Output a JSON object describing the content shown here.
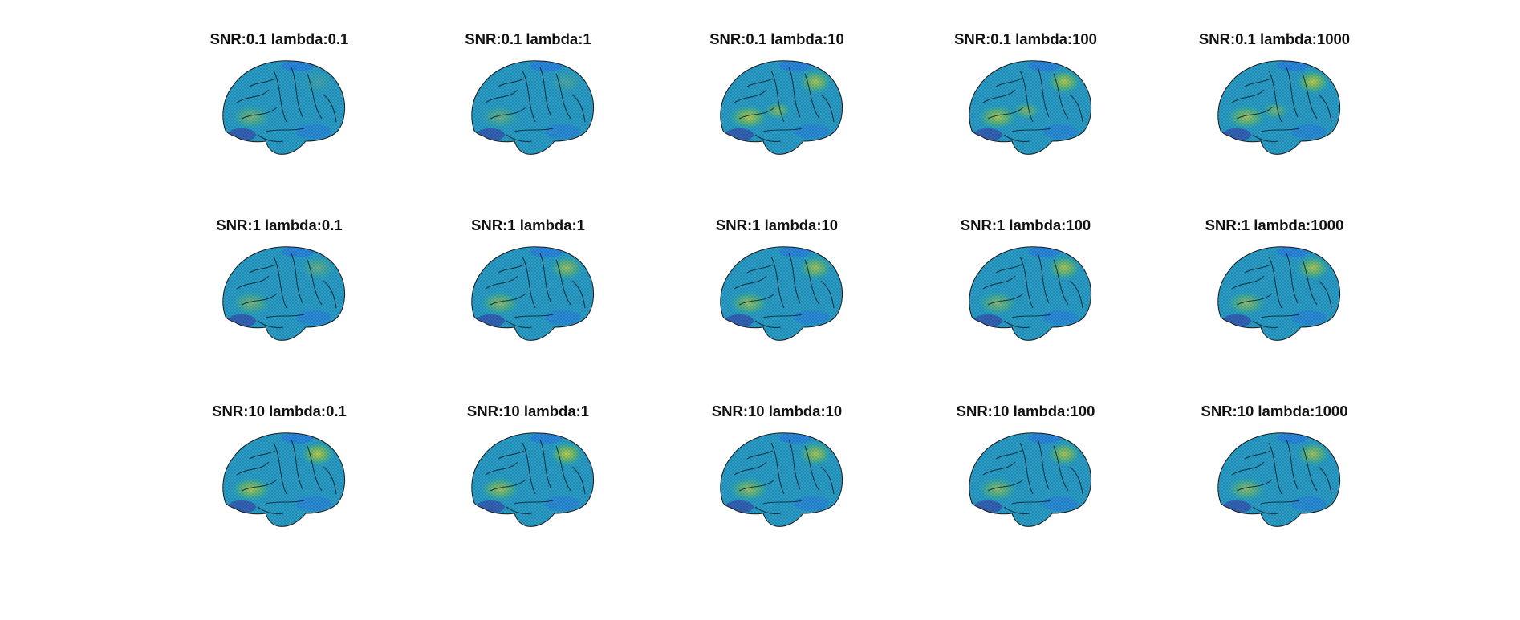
{
  "figure": {
    "panels": [
      {
        "title": "SNR:0.1 lambda:0.1",
        "snr": 0.1,
        "lambda": 0.1,
        "hotspots": [
          {
            "region": "frontal-lower",
            "intensity": 0.45
          },
          {
            "region": "parietal",
            "intensity": 0.15
          }
        ]
      },
      {
        "title": "SNR:0.1 lambda:1",
        "snr": 0.1,
        "lambda": 1,
        "hotspots": [
          {
            "region": "frontal-lower",
            "intensity": 0.35
          },
          {
            "region": "parietal",
            "intensity": 0.2
          }
        ]
      },
      {
        "title": "SNR:0.1 lambda:10",
        "snr": 0.1,
        "lambda": 10,
        "hotspots": [
          {
            "region": "frontal-lower",
            "intensity": 0.75
          },
          {
            "region": "parietal",
            "intensity": 0.7
          },
          {
            "region": "central",
            "intensity": 0.55
          }
        ]
      },
      {
        "title": "SNR:0.1 lambda:100",
        "snr": 0.1,
        "lambda": 100,
        "hotspots": [
          {
            "region": "frontal-lower",
            "intensity": 0.7
          },
          {
            "region": "parietal",
            "intensity": 0.75
          },
          {
            "region": "central",
            "intensity": 0.5
          }
        ]
      },
      {
        "title": "SNR:0.1 lambda:1000",
        "snr": 0.1,
        "lambda": 1000,
        "hotspots": [
          {
            "region": "frontal-lower",
            "intensity": 0.65
          },
          {
            "region": "parietal",
            "intensity": 0.8
          },
          {
            "region": "central",
            "intensity": 0.45
          }
        ]
      },
      {
        "title": "SNR:1 lambda:0.1",
        "snr": 1,
        "lambda": 0.1,
        "hotspots": [
          {
            "region": "frontal-lower",
            "intensity": 0.45
          },
          {
            "region": "parietal",
            "intensity": 0.35
          }
        ]
      },
      {
        "title": "SNR:1 lambda:1",
        "snr": 1,
        "lambda": 1,
        "hotspots": [
          {
            "region": "frontal-lower",
            "intensity": 0.55
          },
          {
            "region": "parietal",
            "intensity": 0.6
          }
        ]
      },
      {
        "title": "SNR:1 lambda:10",
        "snr": 1,
        "lambda": 10,
        "hotspots": [
          {
            "region": "frontal-lower",
            "intensity": 0.6
          },
          {
            "region": "parietal",
            "intensity": 0.65
          }
        ]
      },
      {
        "title": "SNR:1 lambda:100",
        "snr": 1,
        "lambda": 100,
        "hotspots": [
          {
            "region": "frontal-lower",
            "intensity": 0.5
          },
          {
            "region": "parietal",
            "intensity": 0.7
          }
        ]
      },
      {
        "title": "SNR:1 lambda:1000",
        "snr": 1,
        "lambda": 1000,
        "hotspots": [
          {
            "region": "frontal-lower",
            "intensity": 0.55
          },
          {
            "region": "parietal",
            "intensity": 0.7
          }
        ]
      },
      {
        "title": "SNR:10 lambda:0.1",
        "snr": 10,
        "lambda": 0.1,
        "hotspots": [
          {
            "region": "frontal-lower",
            "intensity": 0.7
          },
          {
            "region": "parietal",
            "intensity": 0.8
          }
        ]
      },
      {
        "title": "SNR:10 lambda:1",
        "snr": 10,
        "lambda": 1,
        "hotspots": [
          {
            "region": "frontal-lower",
            "intensity": 0.65
          },
          {
            "region": "parietal",
            "intensity": 0.8
          }
        ]
      },
      {
        "title": "SNR:10 lambda:10",
        "snr": 10,
        "lambda": 10,
        "hotspots": [
          {
            "region": "frontal-lower",
            "intensity": 0.6
          },
          {
            "region": "parietal",
            "intensity": 0.7
          }
        ]
      },
      {
        "title": "SNR:10 lambda:100",
        "snr": 10,
        "lambda": 100,
        "hotspots": [
          {
            "region": "frontal-lower",
            "intensity": 0.55
          },
          {
            "region": "parietal",
            "intensity": 0.7
          }
        ]
      },
      {
        "title": "SNR:10 lambda:1000",
        "snr": 10,
        "lambda": 1000,
        "hotspots": [
          {
            "region": "frontal-lower",
            "intensity": 0.55
          },
          {
            "region": "parietal",
            "intensity": 0.65
          }
        ]
      }
    ],
    "colormap": {
      "name": "parula",
      "low": "#3e26a8",
      "mid_low": "#2b7bef",
      "mid": "#14b5c9",
      "mid_high": "#7fcb48",
      "high": "#f9e022",
      "base": "#2a9fc9",
      "outline": "#1a1a1a"
    }
  }
}
